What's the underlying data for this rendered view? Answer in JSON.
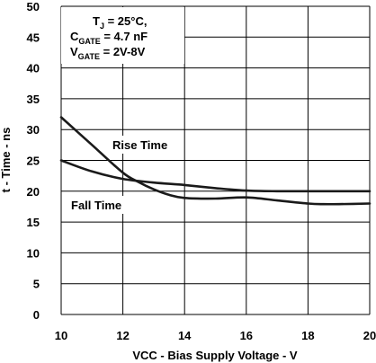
{
  "chart_data": {
    "type": "line",
    "xlabel": "VCC - Bias Supply Voltage - V",
    "ylabel": "t - Time - ns",
    "xlim": [
      10,
      20
    ],
    "ylim": [
      0,
      50
    ],
    "xticks": [
      "10",
      "12",
      "14",
      "16",
      "18",
      "20"
    ],
    "yticks": [
      "0",
      "5",
      "10",
      "15",
      "20",
      "25",
      "30",
      "35",
      "40",
      "45",
      "50"
    ],
    "grid": true,
    "conditions": {
      "line1_main": "T",
      "line1_sub": "J",
      "line1_rest": " = 25°C,",
      "line2_main": "C",
      "line2_sub": "GATE",
      "line2_rest": " = 4.7 nF",
      "line3_main": "V",
      "line3_sub": "GATE",
      "line3_rest": " = 2V-8V"
    },
    "series": [
      {
        "name": "Rise Time",
        "x": [
          10,
          11,
          12,
          12.5,
          13,
          13.5,
          14,
          15,
          16,
          17,
          18,
          18.5,
          19,
          20
        ],
        "y": [
          32,
          27.5,
          23,
          21.5,
          20.3,
          19.4,
          18.9,
          18.8,
          19,
          18.5,
          18,
          17.9,
          17.9,
          18
        ]
      },
      {
        "name": "Fall Time",
        "x": [
          10,
          11,
          12,
          13,
          14,
          15,
          16,
          17,
          18,
          19,
          20
        ],
        "y": [
          25,
          23.2,
          22,
          21.4,
          21,
          20.5,
          20.1,
          20,
          20,
          20,
          20
        ]
      }
    ]
  }
}
